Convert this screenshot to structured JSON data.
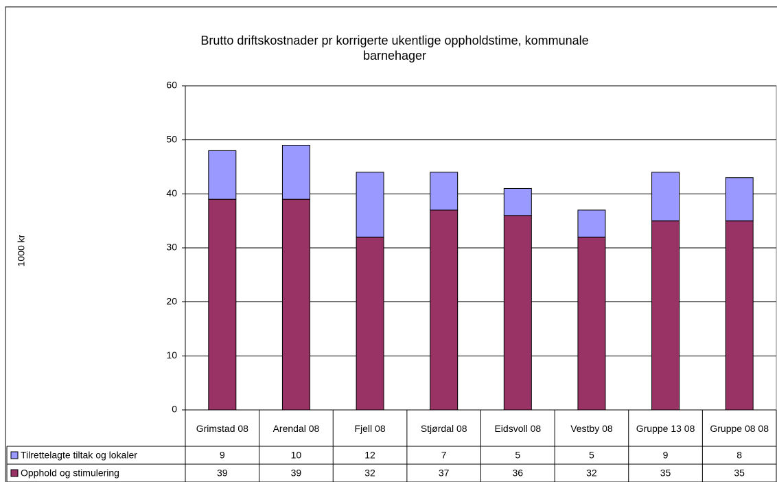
{
  "chart_data": {
    "type": "stacked_bar",
    "title": "Brutto driftskostnader pr korrigerte ukentlige oppholdstime, kommunale barnehager",
    "y_label": "1000 kr",
    "categories": [
      "Grimstad 08",
      "Arendal 08",
      "Fjell 08",
      "Stjørdal 08",
      "Eidsvoll 08",
      "Vestby 08",
      "Gruppe 13 08",
      "Gruppe 08 08"
    ],
    "series": [
      {
        "name": "Opphold og stimulering",
        "color": "#993366",
        "values": [
          39,
          39,
          32,
          37,
          36,
          32,
          35,
          35
        ]
      },
      {
        "name": "Tilrettelagte tiltak og lokaler",
        "color": "#9999ff",
        "values": [
          9,
          10,
          12,
          7,
          5,
          5,
          9,
          8
        ]
      }
    ],
    "ylim": [
      0,
      60
    ],
    "yticks": [
      0,
      10,
      20,
      30,
      40,
      50,
      60
    ],
    "grid": true,
    "data_table": true
  }
}
